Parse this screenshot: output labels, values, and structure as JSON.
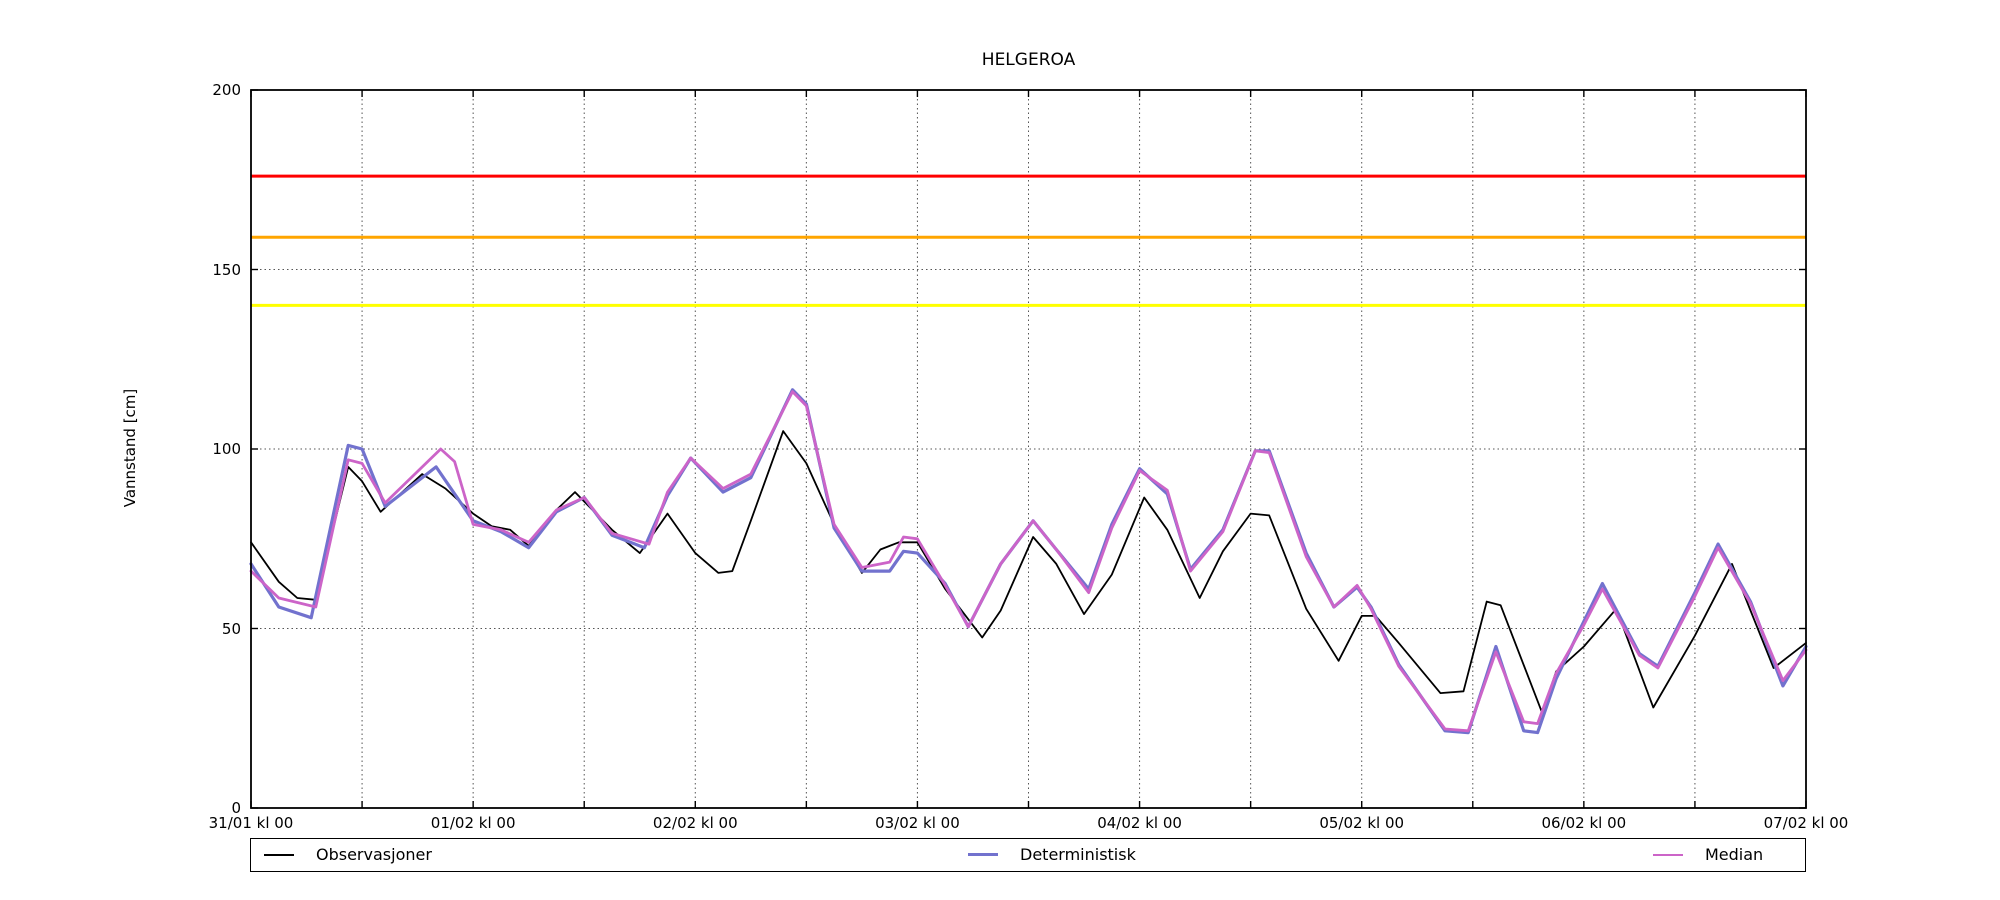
{
  "title": "HELGEROA",
  "chart_data": {
    "type": "line",
    "title": "HELGEROA",
    "xlabel": "",
    "ylabel": "Vannstand [cm]",
    "x_unit": "hours since 31/01 kl 00",
    "x_range_hours": [
      0,
      168
    ],
    "ylim": [
      0,
      200
    ],
    "y_ticks": [
      0,
      50,
      100,
      150,
      200
    ],
    "x_tick_hours": [
      0,
      24,
      48,
      72,
      96,
      120,
      144,
      168
    ],
    "x_tick_labels": [
      "31/01 kl 00",
      "01/02 kl 00",
      "02/02 kl 00",
      "03/02 kl 00",
      "04/02 kl 00",
      "05/02 kl 00",
      "06/02 kl 00",
      "07/02 kl 00"
    ],
    "grid": {
      "x_step_hours": 12,
      "y_lines": [
        50,
        100,
        150
      ],
      "style": "dotted",
      "color": "#555555"
    },
    "legend_position": "below",
    "thresholds": [
      {
        "name": "red-alert-level",
        "value": 176,
        "color": "#ff0000"
      },
      {
        "name": "orange-alert-level",
        "value": 159,
        "color": "#ffa500"
      },
      {
        "name": "yellow-alert-level",
        "value": 140,
        "color": "#ffff00"
      }
    ],
    "series": [
      {
        "name": "Observasjoner",
        "color": "#000000",
        "width": 1.8,
        "points": [
          [
            0,
            74
          ],
          [
            3,
            63
          ],
          [
            5,
            58.5
          ],
          [
            7,
            58
          ],
          [
            10.5,
            95
          ],
          [
            12,
            91
          ],
          [
            14,
            82.5
          ],
          [
            18.5,
            93
          ],
          [
            21,
            89
          ],
          [
            24,
            82
          ],
          [
            26,
            78.5
          ],
          [
            28,
            77.5
          ],
          [
            30,
            73
          ],
          [
            33,
            83
          ],
          [
            35,
            88
          ],
          [
            39,
            77.5
          ],
          [
            42,
            71
          ],
          [
            45,
            82
          ],
          [
            48,
            71
          ],
          [
            50.5,
            65.5
          ],
          [
            52,
            66
          ],
          [
            54,
            80
          ],
          [
            57.5,
            105
          ],
          [
            60,
            96
          ],
          [
            63,
            79
          ],
          [
            66,
            65.5
          ],
          [
            68,
            72
          ],
          [
            70,
            74
          ],
          [
            72,
            74
          ],
          [
            75,
            61
          ],
          [
            79,
            47.5
          ],
          [
            81,
            55
          ],
          [
            84.5,
            75.5
          ],
          [
            87,
            68
          ],
          [
            90,
            54
          ],
          [
            93,
            65
          ],
          [
            96.5,
            86.5
          ],
          [
            99,
            77.5
          ],
          [
            102.5,
            58.5
          ],
          [
            105,
            71.5
          ],
          [
            108,
            82
          ],
          [
            110,
            81.5
          ],
          [
            114,
            55.5
          ],
          [
            117.5,
            41
          ],
          [
            120,
            53.5
          ],
          [
            121.5,
            53.5
          ],
          [
            124,
            46
          ],
          [
            128.5,
            32
          ],
          [
            131,
            32.5
          ],
          [
            133.5,
            57.5
          ],
          [
            135,
            56.5
          ],
          [
            139.5,
            26.5
          ],
          [
            141,
            38
          ],
          [
            144,
            45
          ],
          [
            147.5,
            55.5
          ],
          [
            151.5,
            28
          ],
          [
            156,
            48
          ],
          [
            160,
            68
          ],
          [
            162,
            55
          ],
          [
            164.5,
            39
          ],
          [
            168,
            46
          ]
        ]
      },
      {
        "name": "Deterministisk",
        "color": "#7272ce",
        "width": 3.2,
        "points": [
          [
            0,
            68
          ],
          [
            3,
            56
          ],
          [
            6.5,
            53
          ],
          [
            10.5,
            101
          ],
          [
            12,
            100
          ],
          [
            14.5,
            84
          ],
          [
            20,
            95
          ],
          [
            24,
            80
          ],
          [
            27,
            77
          ],
          [
            30,
            72.5
          ],
          [
            33,
            82.5
          ],
          [
            36,
            86.5
          ],
          [
            39,
            76
          ],
          [
            42.5,
            72.5
          ],
          [
            45,
            87
          ],
          [
            47.5,
            97.5
          ],
          [
            51,
            88
          ],
          [
            54,
            92
          ],
          [
            58.5,
            116.5
          ],
          [
            60,
            112.5
          ],
          [
            63,
            78
          ],
          [
            66,
            66
          ],
          [
            69,
            66
          ],
          [
            70.5,
            71.5
          ],
          [
            72,
            71
          ],
          [
            75,
            62.5
          ],
          [
            77.5,
            50.5
          ],
          [
            81,
            68
          ],
          [
            84.5,
            80
          ],
          [
            87,
            72
          ],
          [
            90.5,
            61
          ],
          [
            93,
            79
          ],
          [
            96,
            94.5
          ],
          [
            99,
            87.5
          ],
          [
            101.5,
            66.5
          ],
          [
            105,
            77.5
          ],
          [
            108.5,
            99.5
          ],
          [
            110,
            99.5
          ],
          [
            114,
            71
          ],
          [
            117,
            56
          ],
          [
            119.5,
            61.5
          ],
          [
            121,
            56
          ],
          [
            124,
            40
          ],
          [
            129,
            21.5
          ],
          [
            131.5,
            21
          ],
          [
            134.5,
            45
          ],
          [
            137.5,
            21.5
          ],
          [
            139,
            21
          ],
          [
            141,
            36
          ],
          [
            144,
            52
          ],
          [
            146,
            62.5
          ],
          [
            150,
            43
          ],
          [
            152,
            39.5
          ],
          [
            156,
            60
          ],
          [
            158.5,
            73.5
          ],
          [
            162,
            57.5
          ],
          [
            165.5,
            34
          ],
          [
            168,
            45
          ]
        ]
      },
      {
        "name": "Median",
        "color": "#cc64c8",
        "width": 2.8,
        "points": [
          [
            0,
            66
          ],
          [
            3,
            58.5
          ],
          [
            7,
            56
          ],
          [
            10.5,
            97
          ],
          [
            12,
            96
          ],
          [
            14.5,
            85
          ],
          [
            20.5,
            100
          ],
          [
            22,
            96.5
          ],
          [
            24,
            79
          ],
          [
            27,
            77.5
          ],
          [
            30,
            74
          ],
          [
            33,
            83
          ],
          [
            36,
            86.5
          ],
          [
            39,
            76.5
          ],
          [
            43,
            73.5
          ],
          [
            45,
            88
          ],
          [
            47.5,
            97.5
          ],
          [
            51,
            89
          ],
          [
            54,
            93
          ],
          [
            58.5,
            116
          ],
          [
            60,
            112
          ],
          [
            63,
            79
          ],
          [
            66,
            67
          ],
          [
            69,
            68.5
          ],
          [
            70.5,
            75.5
          ],
          [
            72,
            75
          ],
          [
            75,
            62
          ],
          [
            77.5,
            50.5
          ],
          [
            81,
            68
          ],
          [
            84.5,
            80
          ],
          [
            87,
            72
          ],
          [
            90.5,
            60
          ],
          [
            93,
            78
          ],
          [
            96,
            94
          ],
          [
            99,
            88.5
          ],
          [
            101.5,
            66
          ],
          [
            105,
            77
          ],
          [
            108.5,
            99.5
          ],
          [
            110,
            99
          ],
          [
            114,
            70
          ],
          [
            117,
            56
          ],
          [
            119.5,
            62
          ],
          [
            121,
            55.5
          ],
          [
            124,
            39.5
          ],
          [
            129,
            22
          ],
          [
            131.5,
            21.5
          ],
          [
            134.5,
            43.5
          ],
          [
            137.5,
            24
          ],
          [
            139,
            23.5
          ],
          [
            141,
            37.5
          ],
          [
            144,
            51
          ],
          [
            146,
            61
          ],
          [
            150,
            42.5
          ],
          [
            152,
            39
          ],
          [
            156,
            59
          ],
          [
            158.5,
            72.5
          ],
          [
            162,
            57
          ],
          [
            165.5,
            35.5
          ],
          [
            168,
            44
          ]
        ]
      }
    ]
  },
  "layout_text": {
    "note": ""
  }
}
